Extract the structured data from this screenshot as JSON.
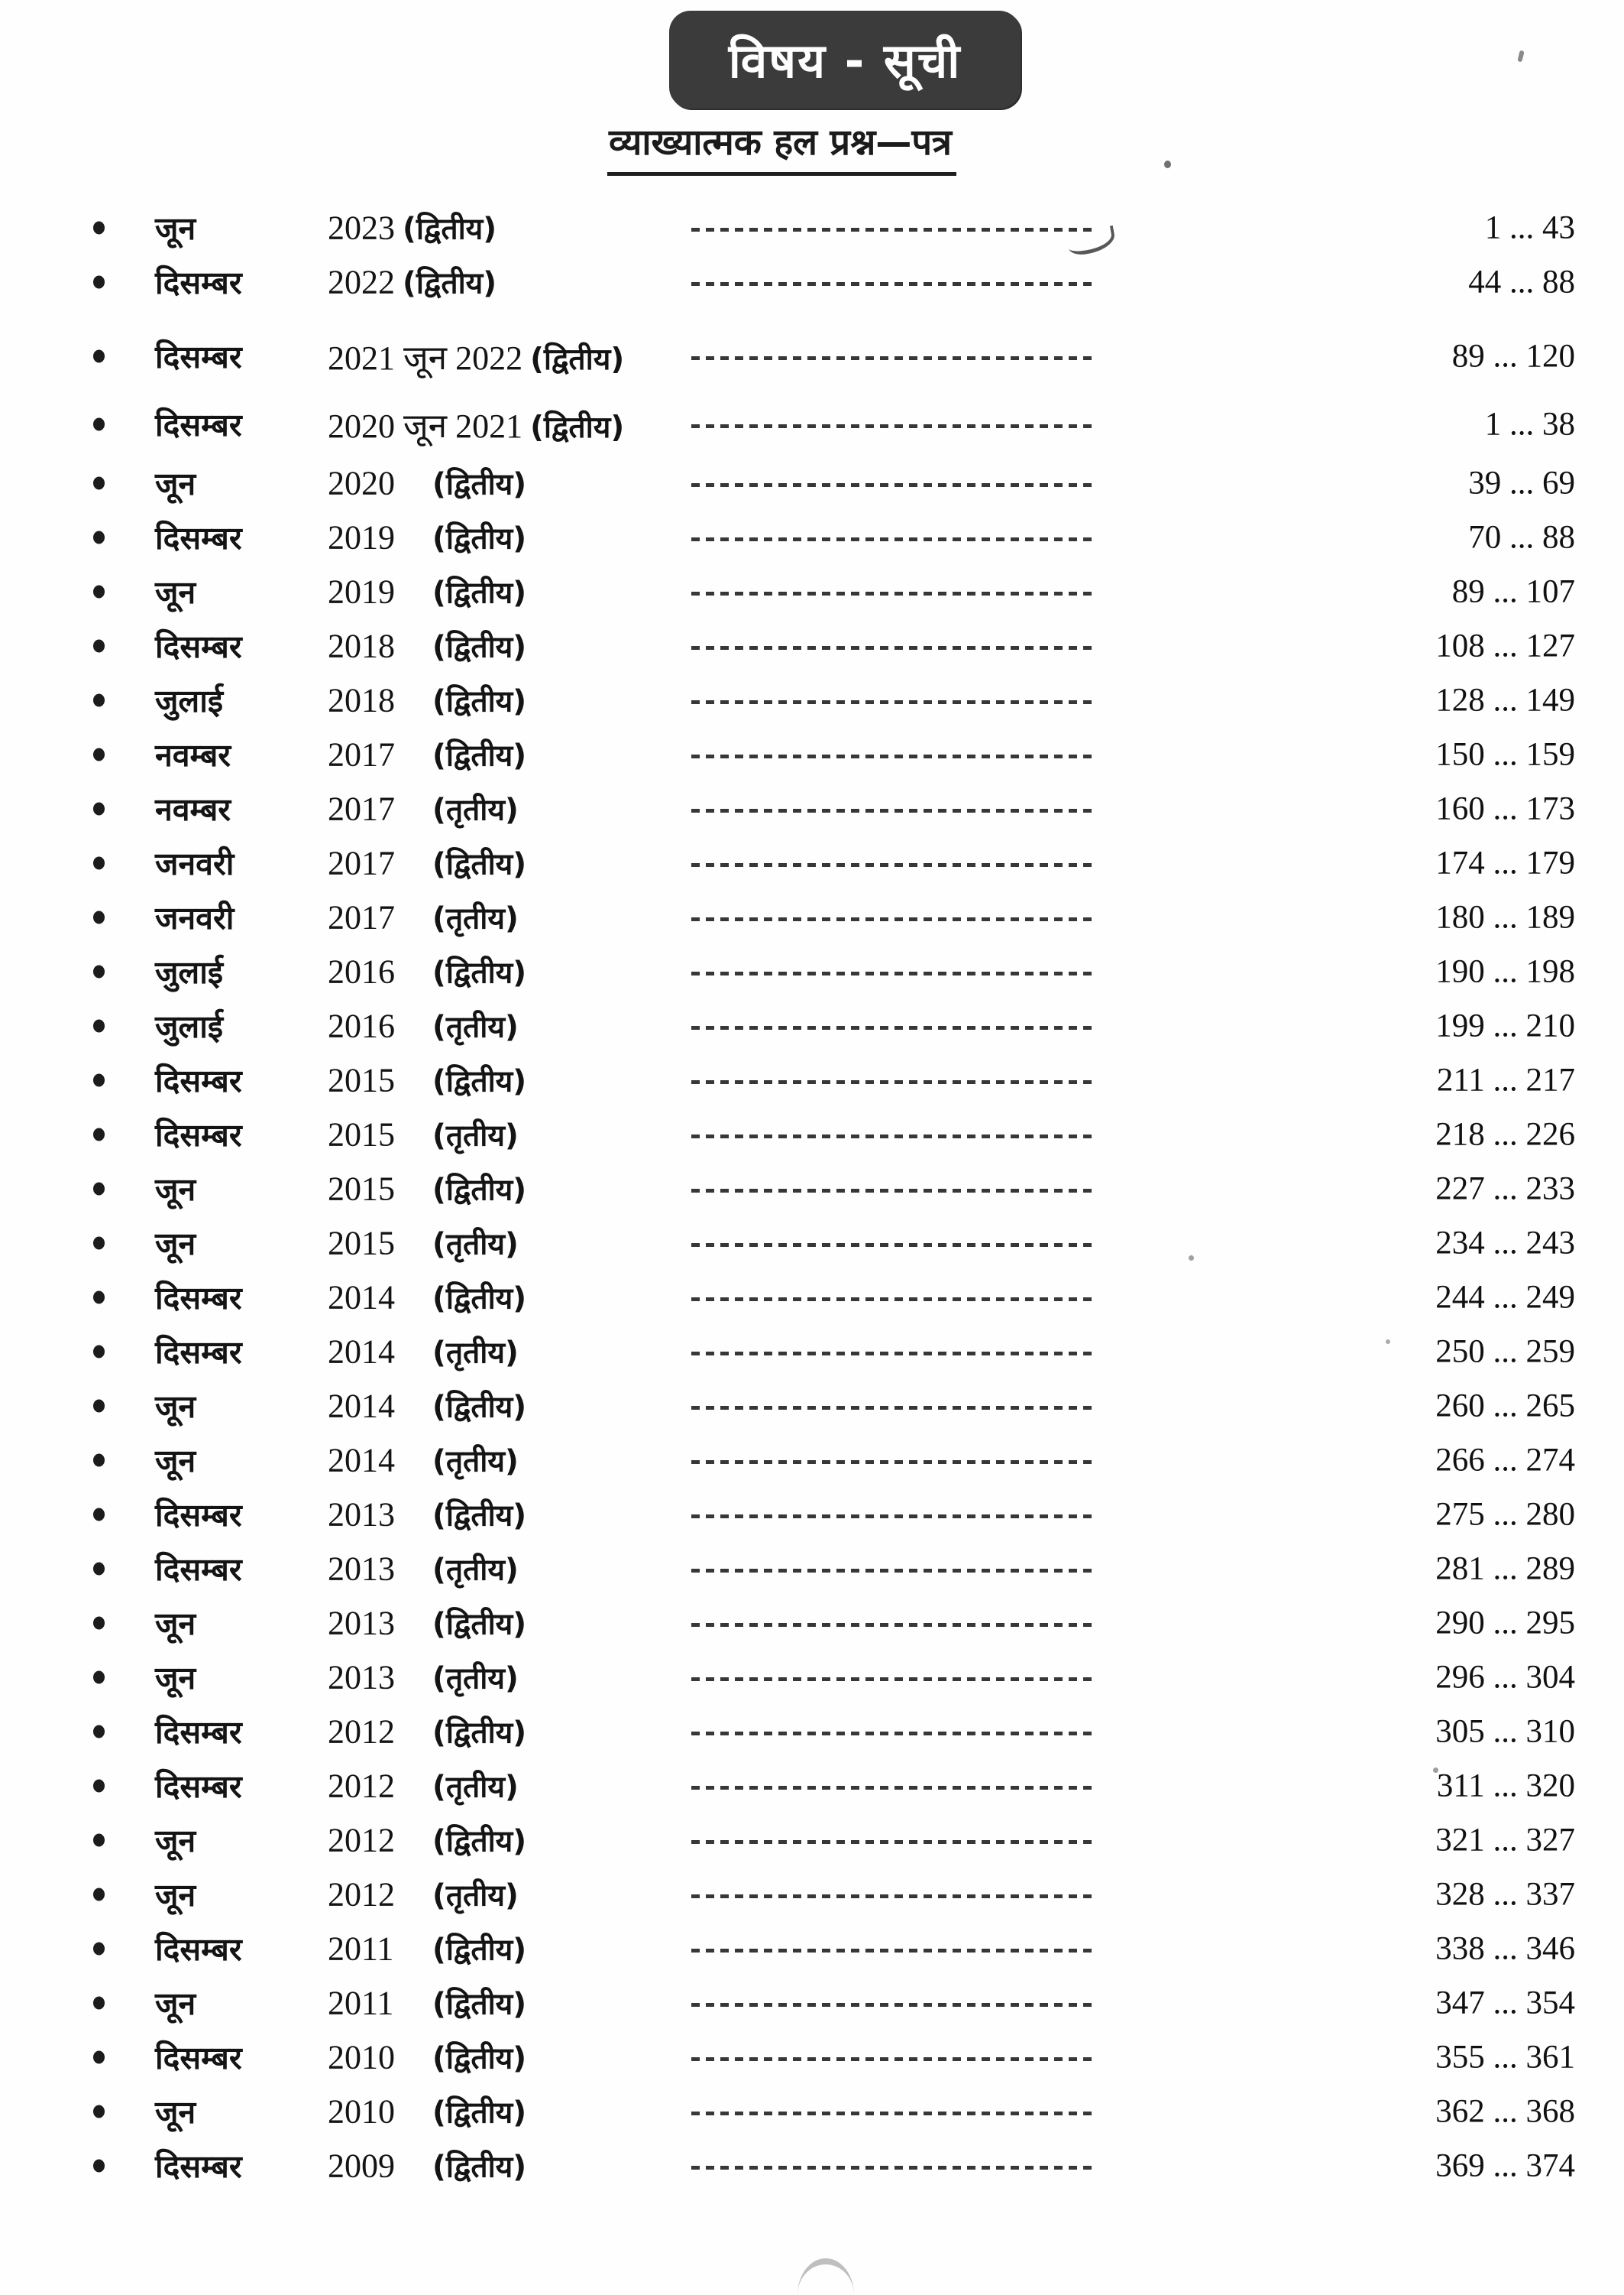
{
  "page": {
    "title": "विषय - सूची",
    "subtitle": "व्याख्यात्मक हल प्रश्न—पत्र"
  },
  "toc": {
    "entries": [
      {
        "month": "जून",
        "year": "2023",
        "type": "(द्वितीय)",
        "pages": "1 ... 43"
      },
      {
        "month": "दिसम्बर",
        "year": "2022",
        "type": "(द्वितीय)",
        "pages": "44 ... 88"
      },
      {
        "month": "दिसम्बर",
        "year": "2021 जून 2022",
        "type": "(द्वितीय)",
        "pages": "89 ... 120"
      },
      {
        "month": "दिसम्बर",
        "year": "2020 जून 2021",
        "type": "(द्वितीय)",
        "pages": "1 ... 38"
      },
      {
        "month": "जून",
        "year": "2020",
        "type": "(द्वितीय)",
        "pages": "39 ... 69"
      },
      {
        "month": "दिसम्बर",
        "year": "2019",
        "type": "(द्वितीय)",
        "pages": "70 ... 88"
      },
      {
        "month": "जून",
        "year": "2019",
        "type": "(द्वितीय)",
        "pages": "89 ... 107"
      },
      {
        "month": "दिसम्बर",
        "year": "2018",
        "type": "(द्वितीय)",
        "pages": "108 ... 127"
      },
      {
        "month": "जुलाई",
        "year": "2018",
        "type": "(द्वितीय)",
        "pages": "128 ... 149"
      },
      {
        "month": "नवम्बर",
        "year": "2017",
        "type": "(द्वितीय)",
        "pages": "150 ... 159"
      },
      {
        "month": "नवम्बर",
        "year": "2017",
        "type": "(तृतीय)",
        "pages": "160 ... 173"
      },
      {
        "month": "जनवरी",
        "year": "2017",
        "type": "(द्वितीय)",
        "pages": "174 ... 179"
      },
      {
        "month": "जनवरी",
        "year": "2017",
        "type": "(तृतीय)",
        "pages": "180 ... 189"
      },
      {
        "month": "जुलाई",
        "year": "2016",
        "type": "(द्वितीय)",
        "pages": "190 ... 198"
      },
      {
        "month": "जुलाई",
        "year": "2016",
        "type": "(तृतीय)",
        "pages": "199 ... 210"
      },
      {
        "month": "दिसम्बर",
        "year": "2015",
        "type": "(द्वितीय)",
        "pages": "211 ... 217"
      },
      {
        "month": "दिसम्बर",
        "year": "2015",
        "type": "(तृतीय)",
        "pages": "218 ... 226"
      },
      {
        "month": "जून",
        "year": "2015",
        "type": "(द्वितीय)",
        "pages": "227 ... 233"
      },
      {
        "month": "जून",
        "year": "2015",
        "type": "(तृतीय)",
        "pages": "234 ... 243"
      },
      {
        "month": "दिसम्बर",
        "year": "2014",
        "type": "(द्वितीय)",
        "pages": "244 ... 249"
      },
      {
        "month": "दिसम्बर",
        "year": "2014",
        "type": "(तृतीय)",
        "pages": "250 ... 259"
      },
      {
        "month": "जून",
        "year": "2014",
        "type": "(द्वितीय)",
        "pages": "260 ... 265"
      },
      {
        "month": "जून",
        "year": "2014",
        "type": "(तृतीय)",
        "pages": "266 ... 274"
      },
      {
        "month": "दिसम्बर",
        "year": "2013",
        "type": "(द्वितीय)",
        "pages": "275 ... 280"
      },
      {
        "month": "दिसम्बर",
        "year": "2013",
        "type": "(तृतीय)",
        "pages": "281 ... 289"
      },
      {
        "month": "जून",
        "year": "2013",
        "type": "(द्वितीय)",
        "pages": "290 ... 295"
      },
      {
        "month": "जून",
        "year": "2013",
        "type": "(तृतीय)",
        "pages": "296 ... 304"
      },
      {
        "month": "दिसम्बर",
        "year": "2012",
        "type": "(द्वितीय)",
        "pages": "305 ... 310"
      },
      {
        "month": "दिसम्बर",
        "year": "2012",
        "type": "(तृतीय)",
        "pages": "311 ... 320"
      },
      {
        "month": "जून",
        "year": "2012",
        "type": "(द्वितीय)",
        "pages": "321 ... 327"
      },
      {
        "month": "जून",
        "year": "2012",
        "type": "(तृतीय)",
        "pages": "328 ... 337"
      },
      {
        "month": "दिसम्बर",
        "year": "2011",
        "type": "(द्वितीय)",
        "pages": "338 ... 346"
      },
      {
        "month": "जून",
        "year": "2011",
        "type": "(द्वितीय)",
        "pages": "347 ... 354"
      },
      {
        "month": "दिसम्बर",
        "year": "2010",
        "type": "(द्वितीय)",
        "pages": "355 ... 361"
      },
      {
        "month": "जून",
        "year": "2010",
        "type": "(द्वितीय)",
        "pages": "362 ... 368"
      },
      {
        "month": "दिसम्बर",
        "year": "2009",
        "type": "(द्वितीय)",
        "pages": "369 ... 374"
      }
    ]
  }
}
